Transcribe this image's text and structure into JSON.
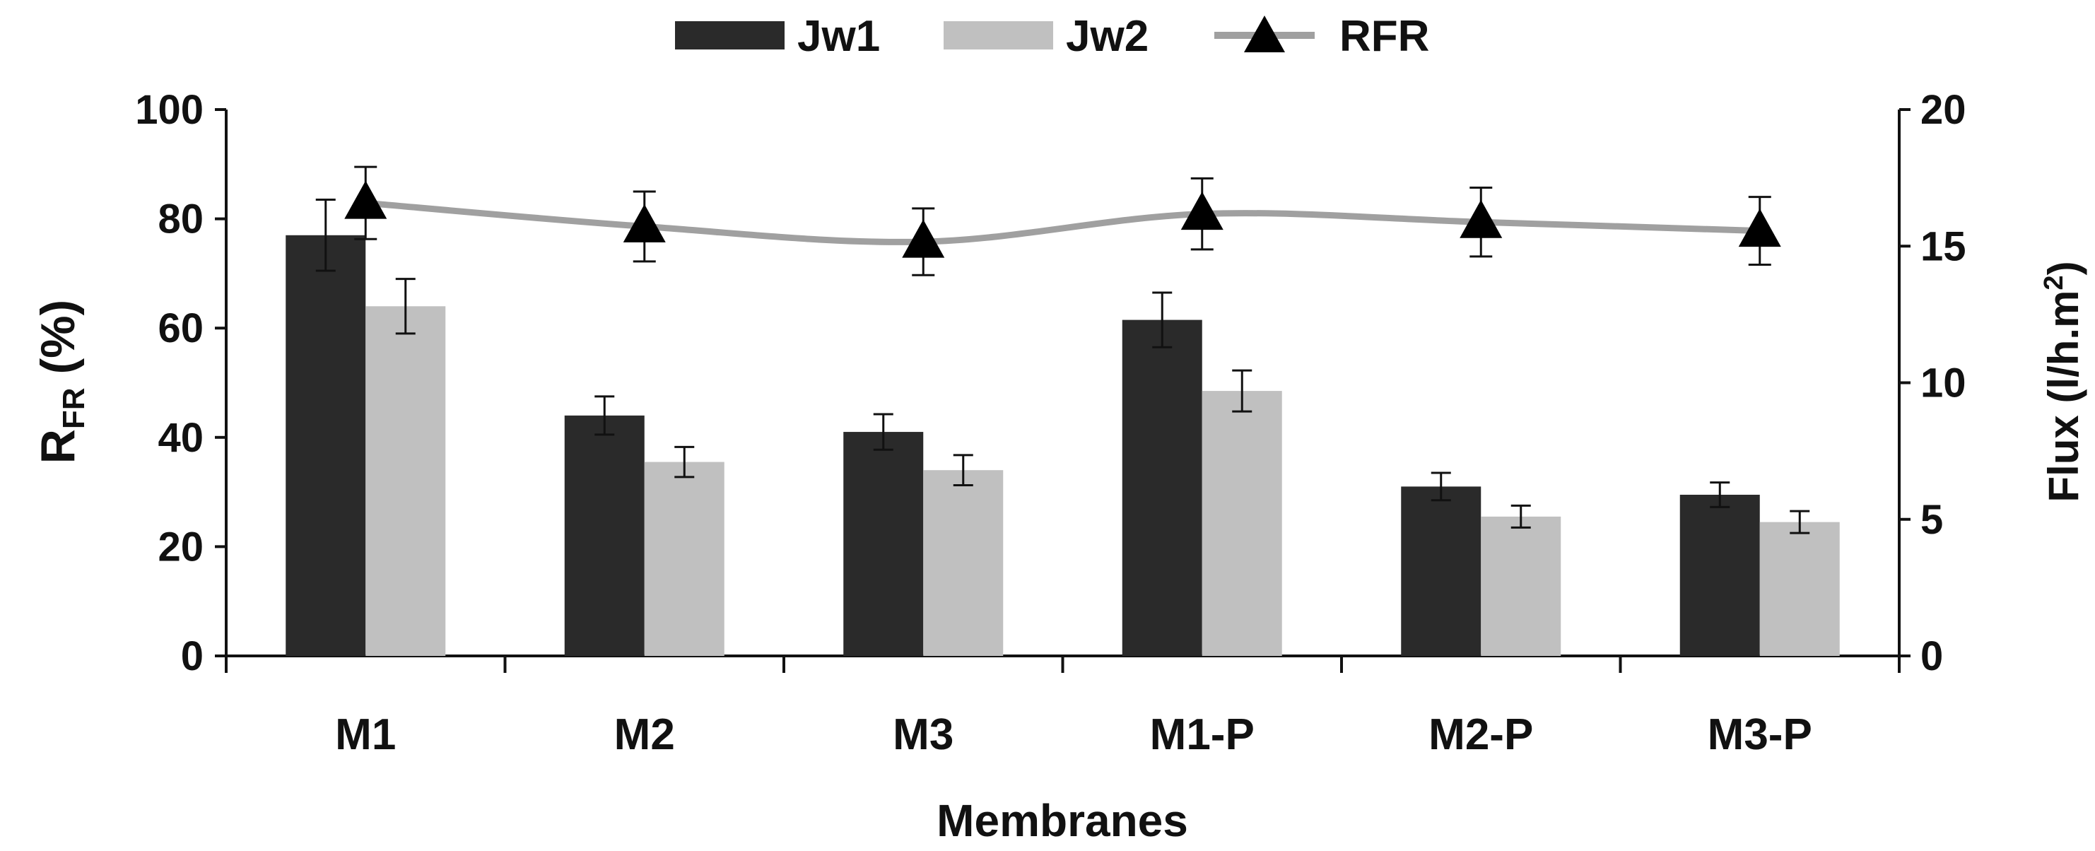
{
  "chart_data": {
    "type": "bar",
    "categories": [
      "M1",
      "M2",
      "M3",
      "M1-P",
      "M2-P",
      "M3-P"
    ],
    "series": [
      {
        "name": "Jw1",
        "kind": "bar",
        "axis": "right",
        "color": "#2a2a2a",
        "values": [
          15.4,
          8.8,
          8.2,
          12.3,
          6.2,
          5.9
        ],
        "errors": [
          1.3,
          0.7,
          0.65,
          1.0,
          0.5,
          0.45
        ]
      },
      {
        "name": "Jw2",
        "kind": "bar",
        "axis": "right",
        "color": "#c0c0c0",
        "values": [
          12.8,
          7.1,
          6.8,
          9.7,
          5.1,
          4.9
        ],
        "errors": [
          1.0,
          0.55,
          0.55,
          0.75,
          0.4,
          0.4
        ]
      },
      {
        "name": "RFR",
        "kind": "line",
        "axis": "left",
        "color": "#a0a0a0",
        "marker": "triangle",
        "values": [
          82.9,
          78.6,
          75.8,
          80.9,
          79.4,
          77.8
        ],
        "errors": [
          6.6,
          6.4,
          6.1,
          6.5,
          6.3,
          6.2
        ]
      }
    ],
    "xlabel": "Membranes",
    "ylabel": "RFR (%)",
    "ylabel_main": "R",
    "ylabel_sub": "FR",
    "ylabel_rest": " (%)",
    "y2label": "Flux (l/h.m",
    "y2label_sup": "2",
    "y2label_end": ")",
    "ylim": [
      0,
      100
    ],
    "y2lim": [
      0,
      20
    ],
    "yticks": [
      "0",
      "20",
      "40",
      "60",
      "80",
      "100"
    ],
    "y2ticks": [
      "0",
      "5",
      "10",
      "15",
      "20"
    ],
    "legend_position": "top-center",
    "grid": false
  }
}
